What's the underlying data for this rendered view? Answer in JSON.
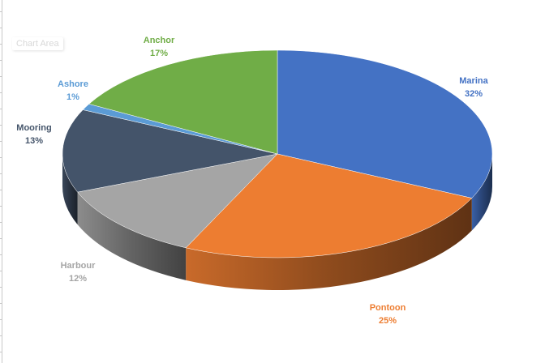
{
  "chart_area_label": "Chart Area",
  "chart_data": {
    "type": "pie",
    "style": "3d",
    "start_angle": "12 o'clock",
    "direction": "clockwise",
    "categories": [
      "Marina",
      "Pontoon",
      "Harbour",
      "Mooring",
      "Ashore",
      "Anchor"
    ],
    "values": [
      32,
      25,
      12,
      13,
      1,
      17
    ],
    "labels": [
      "32%",
      "25%",
      "12%",
      "13%",
      "1%",
      "17%"
    ],
    "colors": [
      "#4472C4",
      "#ED7D31",
      "#A5A5A5",
      "#44546A",
      "#5B9BD5",
      "#70AD47"
    ],
    "label_colors": [
      "#4472C4",
      "#ED7D31",
      "#A5A5A5",
      "#44546A",
      "#5B9BD5",
      "#70AD47"
    ],
    "legend": "none"
  }
}
